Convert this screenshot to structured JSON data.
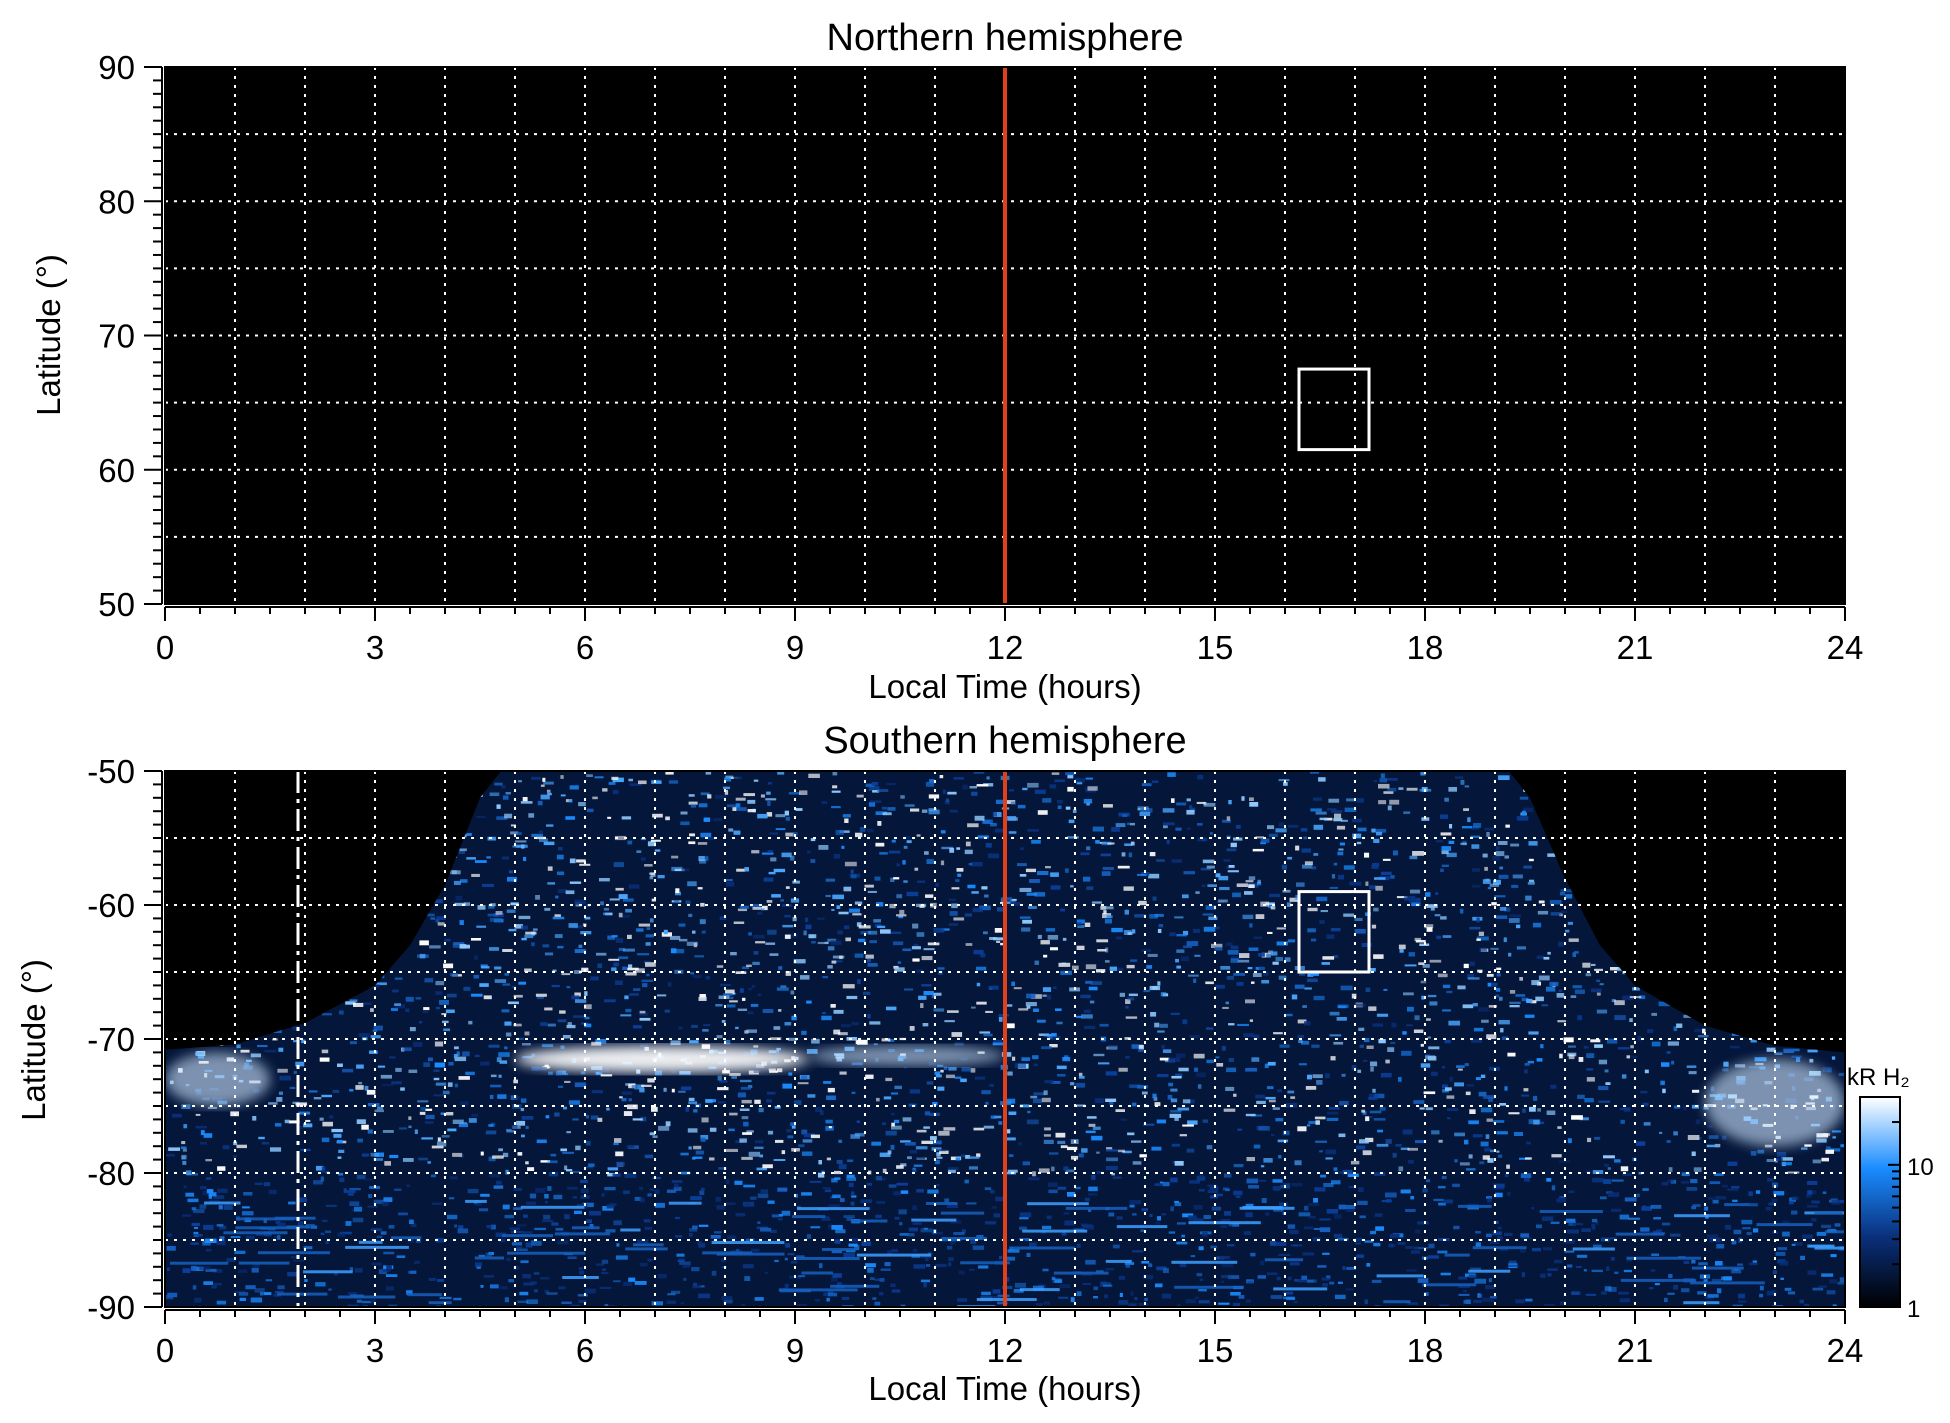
{
  "chart_data": [
    {
      "type": "heatmap",
      "title": "Northern hemisphere",
      "xlabel": "Local Time (hours)",
      "ylabel": "Latitude (°)",
      "xlim": [
        0,
        24
      ],
      "ylim": [
        50,
        90
      ],
      "x_ticks": [
        0,
        3,
        6,
        9,
        12,
        15,
        18,
        21,
        24
      ],
      "x_tick_labels": [
        "0",
        "3",
        "6",
        "9",
        "12",
        "15",
        "18",
        "21",
        "24"
      ],
      "y_ticks": [
        50,
        60,
        70,
        80,
        90
      ],
      "y_tick_labels": [
        "50",
        "60",
        "70",
        "80",
        "90"
      ],
      "grid": true,
      "grid_x_step": 1,
      "grid_y_step": 5,
      "background_color": "#000000",
      "emission": "none",
      "noon_line": {
        "x": 12,
        "color": "#e0401a"
      },
      "box": {
        "x0": 16.2,
        "x1": 17.2,
        "y0": 61.5,
        "y1": 67.5,
        "color": "#ffffff"
      }
    },
    {
      "type": "heatmap",
      "title": "Southern hemisphere",
      "xlabel": "Local Time (hours)",
      "ylabel": "Latitude (°)",
      "xlim": [
        0,
        24
      ],
      "ylim": [
        -90,
        -50
      ],
      "x_ticks": [
        0,
        3,
        6,
        9,
        12,
        15,
        18,
        21,
        24
      ],
      "x_tick_labels": [
        "0",
        "3",
        "6",
        "9",
        "12",
        "15",
        "18",
        "21",
        "24"
      ],
      "y_ticks": [
        -50,
        -60,
        -70,
        -80,
        -90
      ],
      "y_tick_labels": [
        "-50",
        "-60",
        "-70",
        "-80",
        "-90"
      ],
      "grid": true,
      "grid_x_step": 1,
      "grid_y_step": 5,
      "background_color": "#000000",
      "coverage_boundary": [
        [
          0,
          -70.8
        ],
        [
          1,
          -70.4
        ],
        [
          2,
          -68.8
        ],
        [
          3,
          -66
        ],
        [
          3.5,
          -63
        ],
        [
          4,
          -58.5
        ],
        [
          4.5,
          -52
        ],
        [
          4.8,
          -50
        ],
        [
          19.2,
          -50
        ],
        [
          19.5,
          -52
        ],
        [
          20,
          -58
        ],
        [
          20.5,
          -63
        ],
        [
          21,
          -66
        ],
        [
          22,
          -69
        ],
        [
          23,
          -70.5
        ],
        [
          24,
          -71
        ]
      ],
      "bright_features": [
        {
          "x0": 5.0,
          "x1": 9.2,
          "y0": -72.5,
          "y1": -70.5,
          "intensity": 30
        },
        {
          "x0": 9.2,
          "x1": 12.0,
          "y0": -72.0,
          "y1": -70.5,
          "intensity": 18
        },
        {
          "x0": 0.0,
          "x1": 1.5,
          "y0": -75.0,
          "y1": -71.0,
          "intensity": 20
        },
        {
          "x0": 22.0,
          "x1": 24.0,
          "y0": -78.0,
          "y1": -71.5,
          "intensity": 22
        }
      ],
      "dashed_line": {
        "x": 1.9,
        "color": "#ffffff"
      },
      "noon_line": {
        "x": 12,
        "color": "#e0401a"
      },
      "box": {
        "x0": 16.2,
        "x1": 17.2,
        "y0": -65,
        "y1": -59,
        "color": "#ffffff"
      },
      "colorbar": {
        "label": "kR H₂",
        "scale": "log",
        "range": [
          1,
          30
        ],
        "ticks": [
          1,
          10
        ],
        "tick_labels": [
          "1",
          "10"
        ],
        "colors": [
          "#000000",
          "#0a2f7a",
          "#1a8cff",
          "#ffffff"
        ]
      }
    }
  ]
}
